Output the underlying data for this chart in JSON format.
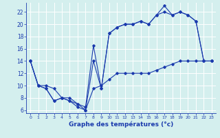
{
  "line1": {
    "x": [
      0,
      1,
      2,
      3,
      4,
      5,
      6,
      7,
      8,
      9,
      10,
      11,
      12,
      13,
      14,
      15,
      16,
      17,
      18,
      19,
      20,
      21,
      22,
      23
    ],
    "y": [
      14,
      10,
      10,
      9.5,
      8,
      8,
      7,
      6.5,
      16.5,
      9.5,
      18.5,
      19.5,
      20,
      20,
      20.5,
      20,
      21.5,
      23,
      21.5,
      22,
      21.5,
      20.5,
      14,
      14
    ]
  },
  "line2": {
    "x": [
      0,
      1,
      2,
      3,
      4,
      5,
      6,
      7,
      8,
      9,
      10,
      11,
      12,
      13,
      14,
      15,
      16,
      17,
      18,
      19,
      20,
      21,
      22,
      23
    ],
    "y": [
      14,
      10,
      9.5,
      7.5,
      8,
      7.5,
      6.5,
      6,
      14,
      9.5,
      18.5,
      19.5,
      20,
      20,
      20.5,
      20,
      21.5,
      22,
      21.5,
      22,
      21.5,
      20.5,
      14,
      14
    ]
  },
  "line3": {
    "x": [
      0,
      1,
      2,
      3,
      4,
      5,
      6,
      7,
      8,
      9,
      10,
      11,
      12,
      13,
      14,
      15,
      16,
      17,
      18,
      19,
      20,
      21,
      22,
      23
    ],
    "y": [
      14,
      10,
      9.5,
      7.5,
      8,
      7.5,
      7,
      6,
      9.5,
      10,
      11,
      12,
      12,
      12,
      12,
      12,
      12.5,
      13,
      13.5,
      14,
      14,
      14,
      14,
      14
    ]
  },
  "line_color": "#1a3aad",
  "marker": "D",
  "markersize": 1.8,
  "linewidth": 0.8,
  "xlabel": "Graphe des températures (°c)",
  "xlabel_fontsize": 6.5,
  "bg_color": "#d4efee",
  "grid_color": "#ffffff",
  "yticks": [
    6,
    8,
    10,
    12,
    14,
    16,
    18,
    20,
    22
  ],
  "xticks": [
    0,
    1,
    2,
    3,
    4,
    5,
    6,
    7,
    8,
    9,
    10,
    11,
    12,
    13,
    14,
    15,
    16,
    17,
    18,
    19,
    20,
    21,
    22,
    23
  ],
  "ylim": [
    5.5,
    23.5
  ],
  "xlim": [
    -0.5,
    23.5
  ]
}
